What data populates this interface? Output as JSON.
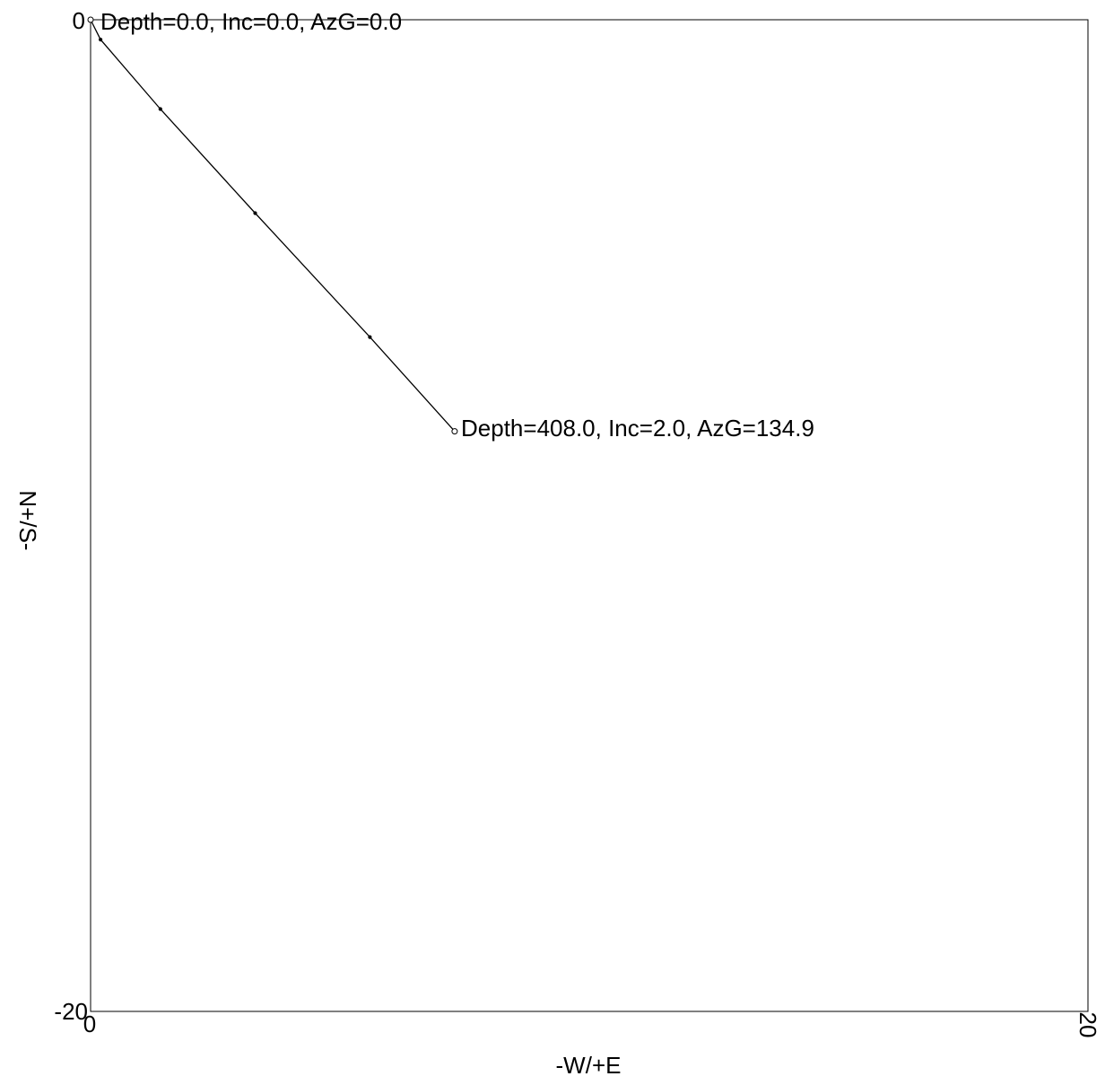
{
  "chart_data": {
    "type": "line",
    "title": "",
    "xlabel": "-W/+E",
    "ylabel": "N+/S-",
    "xlim": [
      0,
      20
    ],
    "ylim": [
      -20,
      0
    ],
    "x_ticks": [
      {
        "value": 0,
        "label": "0"
      },
      {
        "value": 20,
        "label": "20"
      }
    ],
    "y_ticks": [
      {
        "value": 0,
        "label": "0"
      },
      {
        "value": -20,
        "label": "-20"
      }
    ],
    "grid": false,
    "series": [
      {
        "x": [
          0,
          0.2,
          1.4,
          3.3,
          5.6,
          7.3
        ],
        "y": [
          0,
          -0.4,
          -1.8,
          -3.9,
          -6.4,
          -8.3
        ]
      }
    ],
    "annotations": [
      {
        "text": "Depth=0.0, Inc=0.0, AzG=0.0",
        "x": 0,
        "y": 0
      },
      {
        "text": "Depth=408.0, Inc=2.0, AzG=134.9",
        "x": 7.3,
        "y": -8.3
      }
    ],
    "colors": {
      "line": "#000000",
      "axes": "#000000",
      "background": "#ffffff"
    }
  }
}
